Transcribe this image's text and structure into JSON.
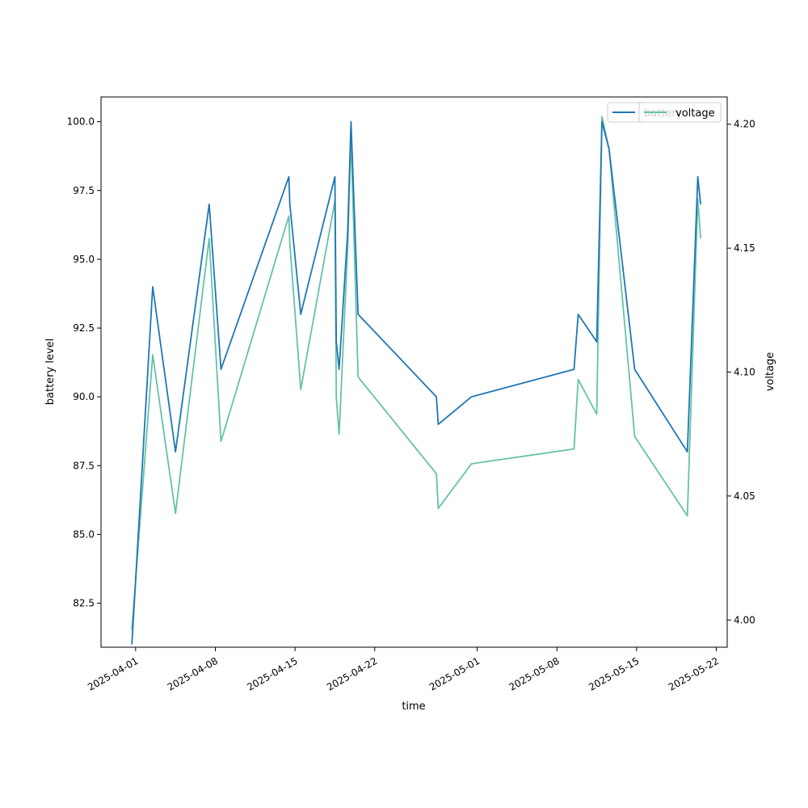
{
  "chart_data": {
    "type": "line",
    "xlabel": "time",
    "ylabel": "battery level",
    "y2label": "voltage",
    "xlim": [
      "2025-03-28T23:00",
      "2025-05-22T23:00"
    ],
    "ylim": [
      80.9,
      100.9
    ],
    "y2lim": [
      3.989,
      4.211
    ],
    "x_ticks": [
      "2025-04-01",
      "2025-04-08",
      "2025-04-15",
      "2025-04-22",
      "2025-05-01",
      "2025-05-08",
      "2025-05-15",
      "2025-05-22"
    ],
    "y_ticks": [
      "82.5",
      "85.0",
      "87.5",
      "90.0",
      "92.5",
      "95.0",
      "97.5",
      "100.0"
    ],
    "y2_ticks": [
      "4.00",
      "4.05",
      "4.10",
      "4.15",
      "4.20"
    ],
    "legend_placement": "upper-right",
    "series": [
      {
        "name": "battery",
        "axis": "left",
        "color": "#1f77b4",
        "points": [
          [
            "2025-03-31T16:00",
            81
          ],
          [
            "2025-04-02T12:00",
            94
          ],
          [
            "2025-04-04T12:00",
            88
          ],
          [
            "2025-04-07T11:00",
            97
          ],
          [
            "2025-04-08T12:00",
            91
          ],
          [
            "2025-04-14T11:00",
            98
          ],
          [
            "2025-04-14T13:00",
            97
          ],
          [
            "2025-04-15T12:00",
            93
          ],
          [
            "2025-04-18T12:00",
            98
          ],
          [
            "2025-04-18T15:00",
            92
          ],
          [
            "2025-04-18T21:00",
            91
          ],
          [
            "2025-04-19T15:00",
            96
          ],
          [
            "2025-04-19T22:00",
            100
          ],
          [
            "2025-04-20T13:00",
            93
          ],
          [
            "2025-04-27T10:00",
            90
          ],
          [
            "2025-04-27T14:00",
            89
          ],
          [
            "2025-04-30T12:00",
            90
          ],
          [
            "2025-05-09T12:00",
            91
          ],
          [
            "2025-05-09T21:00",
            93
          ],
          [
            "2025-05-11T12:00",
            92
          ],
          [
            "2025-05-11T23:00",
            100
          ],
          [
            "2025-05-12T14:00",
            99
          ],
          [
            "2025-05-14T20:00",
            91
          ],
          [
            "2025-05-19T11:00",
            88
          ],
          [
            "2025-05-20T09:00",
            98
          ],
          [
            "2025-05-20T15:00",
            97
          ]
        ]
      },
      {
        "name": "voltage",
        "axis": "right",
        "color": "#66c2a5",
        "points": [
          [
            "2025-03-31T16:00",
            3.996
          ],
          [
            "2025-04-02T12:00",
            4.107
          ],
          [
            "2025-04-04T12:00",
            4.043
          ],
          [
            "2025-04-07T11:00",
            4.154
          ],
          [
            "2025-04-08T12:00",
            4.072
          ],
          [
            "2025-04-14T11:00",
            4.163
          ],
          [
            "2025-04-14T13:00",
            4.152
          ],
          [
            "2025-04-15T12:00",
            4.093
          ],
          [
            "2025-04-18T12:00",
            4.169
          ],
          [
            "2025-04-18T15:00",
            4.09
          ],
          [
            "2025-04-18T21:00",
            4.075
          ],
          [
            "2025-04-19T15:00",
            4.15
          ],
          [
            "2025-04-19T22:00",
            4.195
          ],
          [
            "2025-04-20T13:00",
            4.098
          ],
          [
            "2025-04-27T10:00",
            4.059
          ],
          [
            "2025-04-27T14:00",
            4.045
          ],
          [
            "2025-04-30T12:00",
            4.063
          ],
          [
            "2025-05-09T12:00",
            4.069
          ],
          [
            "2025-05-09T21:00",
            4.097
          ],
          [
            "2025-05-11T12:00",
            4.083
          ],
          [
            "2025-05-11T23:00",
            4.203
          ],
          [
            "2025-05-12T14:00",
            4.19
          ],
          [
            "2025-05-14T20:00",
            4.074
          ],
          [
            "2025-05-19T11:00",
            4.042
          ],
          [
            "2025-05-20T09:00",
            4.17
          ],
          [
            "2025-05-20T15:00",
            4.154
          ]
        ]
      }
    ]
  }
}
